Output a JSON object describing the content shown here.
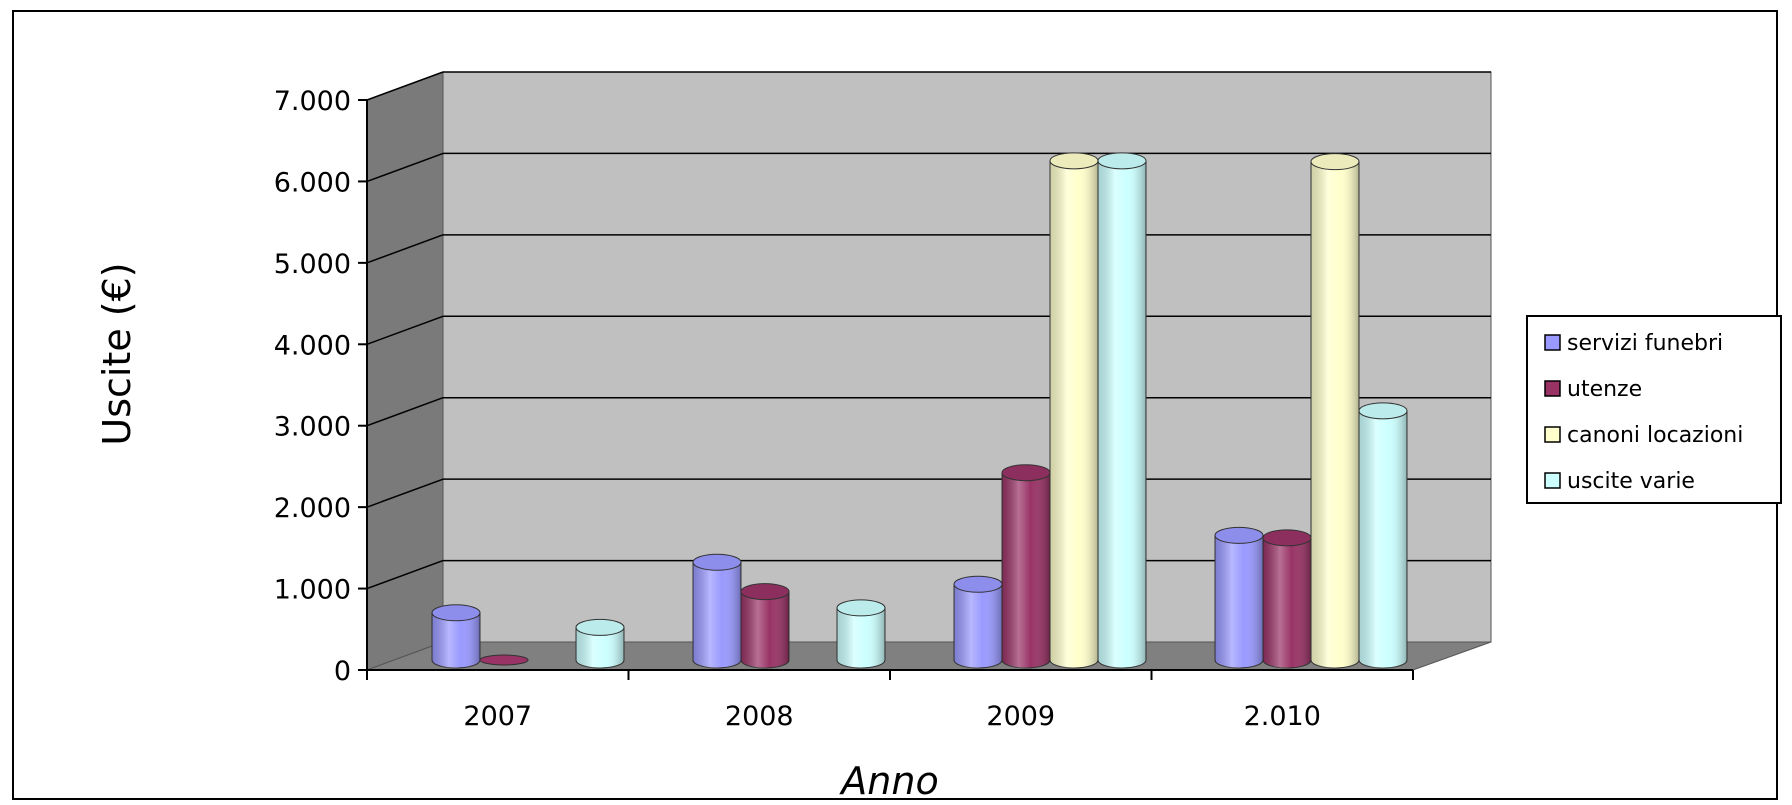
{
  "chart_data": {
    "type": "bar",
    "title": "",
    "xlabel": "Anno",
    "ylabel": "Uscite (€)",
    "categories": [
      "2007",
      "2008",
      "2009",
      "2.010"
    ],
    "yticks": [
      "0",
      "1.000",
      "2.000",
      "3.000",
      "4.000",
      "5.000",
      "6.000",
      "7.000"
    ],
    "ylim": [
      0,
      7000
    ],
    "grid": true,
    "legend_position": "right",
    "series": [
      {
        "name": "servizi funebri",
        "color": "#9999ff",
        "values": [
          580,
          1200,
          930,
          1530
        ]
      },
      {
        "name": "utenze",
        "color": "#993366",
        "values": [
          0,
          840,
          2300,
          1500
        ]
      },
      {
        "name": "canoni locazioni",
        "color": "#ffffcc",
        "values": [
          0,
          0,
          6130,
          6120
        ]
      },
      {
        "name": "uscite varie",
        "color": "#ccffff",
        "values": [
          400,
          640,
          6130,
          3060
        ]
      }
    ]
  }
}
